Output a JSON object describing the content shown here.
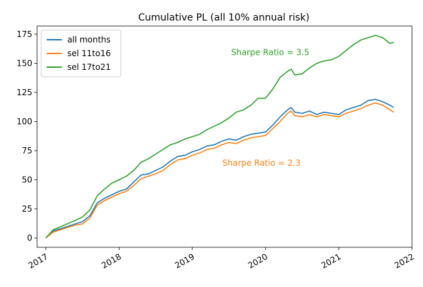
{
  "chart_data": {
    "type": "line",
    "title": "Cumulative PL (all 10% annual risk)",
    "xlabel": "",
    "ylabel": "",
    "xlim": [
      2016.88,
      2022.0
    ],
    "ylim": [
      -8,
      182
    ],
    "xticks": [
      2017,
      2018,
      2019,
      2020,
      2021,
      2022
    ],
    "yticks": [
      0,
      25,
      50,
      75,
      100,
      125,
      150,
      175
    ],
    "grid": false,
    "legend_position": "top-left",
    "series": [
      {
        "name": "all months",
        "color": "#1f77b4",
        "x": [
          2017.0,
          2017.1,
          2017.25,
          2017.4,
          2017.5,
          2017.6,
          2017.7,
          2017.8,
          2017.9,
          2018.0,
          2018.1,
          2018.2,
          2018.3,
          2018.4,
          2018.5,
          2018.6,
          2018.7,
          2018.8,
          2018.9,
          2019.0,
          2019.1,
          2019.2,
          2019.3,
          2019.4,
          2019.5,
          2019.6,
          2019.7,
          2019.8,
          2019.9,
          2020.0,
          2020.1,
          2020.2,
          2020.3,
          2020.35,
          2020.4,
          2020.5,
          2020.6,
          2020.7,
          2020.8,
          2020.9,
          2021.0,
          2021.1,
          2021.2,
          2021.3,
          2021.4,
          2021.5,
          2021.6,
          2021.7,
          2021.75
        ],
        "values": [
          0,
          6,
          9,
          12,
          14,
          19,
          30,
          34,
          37,
          40,
          42,
          48,
          54,
          55,
          58,
          61,
          66,
          70,
          71,
          74,
          76,
          79,
          80,
          83,
          85,
          84,
          87,
          89,
          90,
          91,
          97,
          104,
          110,
          112,
          108,
          107,
          109,
          106,
          108,
          107,
          106,
          110,
          112,
          114,
          118,
          119,
          117,
          114,
          112
        ]
      },
      {
        "name": "sel 11to16",
        "color": "#ff7f0e",
        "x": [
          2017.0,
          2017.1,
          2017.25,
          2017.4,
          2017.5,
          2017.6,
          2017.7,
          2017.8,
          2017.9,
          2018.0,
          2018.1,
          2018.2,
          2018.3,
          2018.4,
          2018.5,
          2018.6,
          2018.7,
          2018.8,
          2018.9,
          2019.0,
          2019.1,
          2019.2,
          2019.3,
          2019.4,
          2019.5,
          2019.6,
          2019.7,
          2019.8,
          2019.9,
          2020.0,
          2020.1,
          2020.2,
          2020.3,
          2020.35,
          2020.4,
          2020.5,
          2020.6,
          2020.7,
          2020.8,
          2020.9,
          2021.0,
          2021.1,
          2021.2,
          2021.3,
          2021.4,
          2021.5,
          2021.6,
          2021.7,
          2021.75
        ],
        "values": [
          0,
          5,
          8,
          11,
          12,
          17,
          28,
          32,
          35,
          38,
          40,
          45,
          51,
          53,
          55,
          58,
          63,
          67,
          68,
          71,
          73,
          76,
          77,
          80,
          82,
          81,
          84,
          86,
          87,
          88,
          94,
          100,
          107,
          109,
          105,
          104,
          106,
          104,
          106,
          105,
          104,
          107,
          109,
          111,
          114,
          116,
          114,
          110,
          108
        ]
      },
      {
        "name": "sel 17to21",
        "color": "#2ca02c",
        "x": [
          2017.0,
          2017.1,
          2017.25,
          2017.4,
          2017.5,
          2017.6,
          2017.7,
          2017.8,
          2017.9,
          2018.0,
          2018.1,
          2018.2,
          2018.3,
          2018.4,
          2018.5,
          2018.6,
          2018.7,
          2018.8,
          2018.9,
          2019.0,
          2019.1,
          2019.2,
          2019.3,
          2019.4,
          2019.5,
          2019.6,
          2019.7,
          2019.8,
          2019.9,
          2020.0,
          2020.1,
          2020.2,
          2020.3,
          2020.35,
          2020.4,
          2020.5,
          2020.6,
          2020.7,
          2020.8,
          2020.9,
          2021.0,
          2021.1,
          2021.2,
          2021.3,
          2021.4,
          2021.5,
          2021.6,
          2021.7,
          2021.75
        ],
        "values": [
          0,
          7,
          11,
          15,
          18,
          24,
          36,
          42,
          47,
          50,
          53,
          58,
          65,
          68,
          72,
          76,
          80,
          82,
          85,
          87,
          89,
          93,
          96,
          99,
          103,
          108,
          110,
          114,
          120,
          120,
          128,
          138,
          143,
          145,
          140,
          141,
          146,
          150,
          152,
          153,
          156,
          161,
          166,
          170,
          172,
          174,
          172,
          167,
          168
        ]
      }
    ],
    "annotations": [
      {
        "text": "Sharpe Ratio = 3.5",
        "x": 2019.53,
        "y": 157,
        "color": "#2ca02c"
      },
      {
        "text": "Sharpe Ratio = 2.3",
        "x": 2019.41,
        "y": 62,
        "color": "#ff7f0e"
      }
    ]
  }
}
